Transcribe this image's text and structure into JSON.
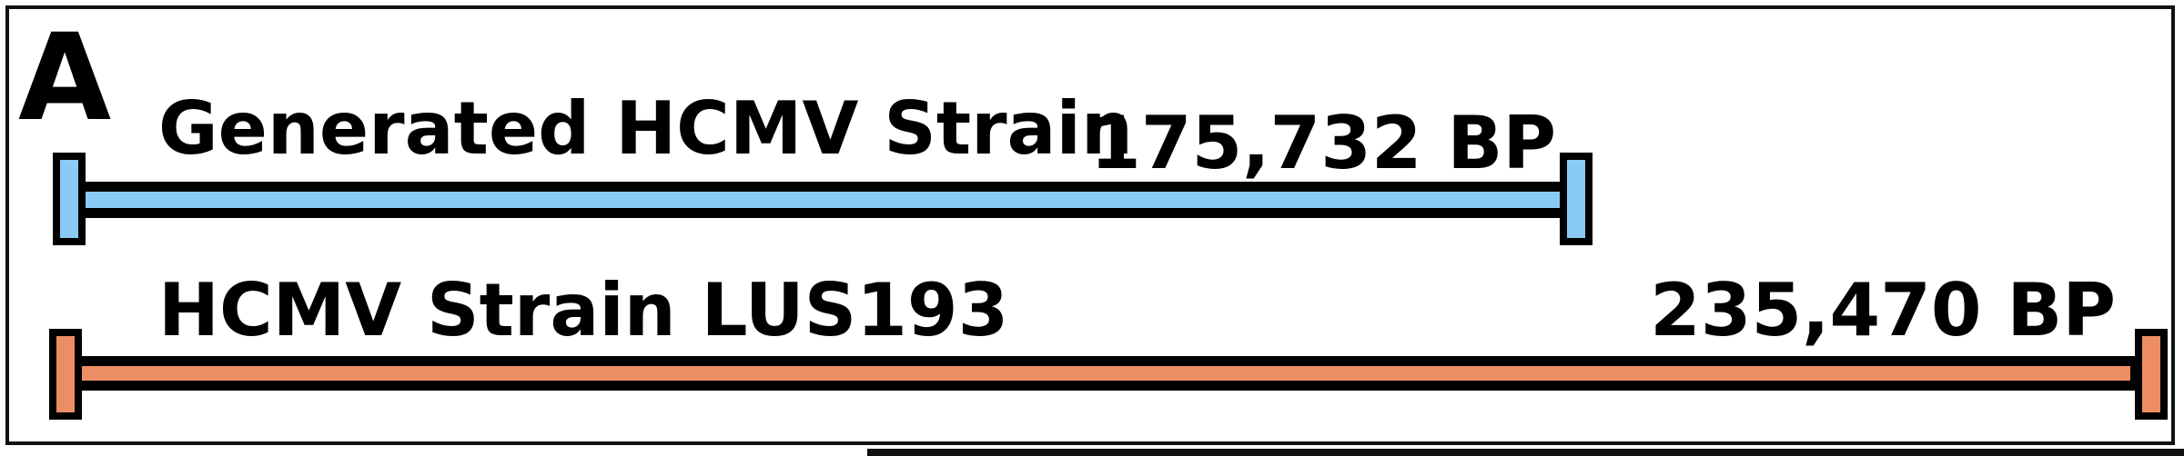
{
  "panel_letter": "A",
  "tracks": [
    {
      "name": "Generated HCMV Strain",
      "length_label": "175,732 BP",
      "length_bp": 175732,
      "color": "#89CBF5"
    },
    {
      "name": "HCMV Strain LUS193",
      "length_label": "235,470 BP",
      "length_bp": 235470,
      "color": "#EC8D63"
    }
  ],
  "outline_color": "#000000"
}
